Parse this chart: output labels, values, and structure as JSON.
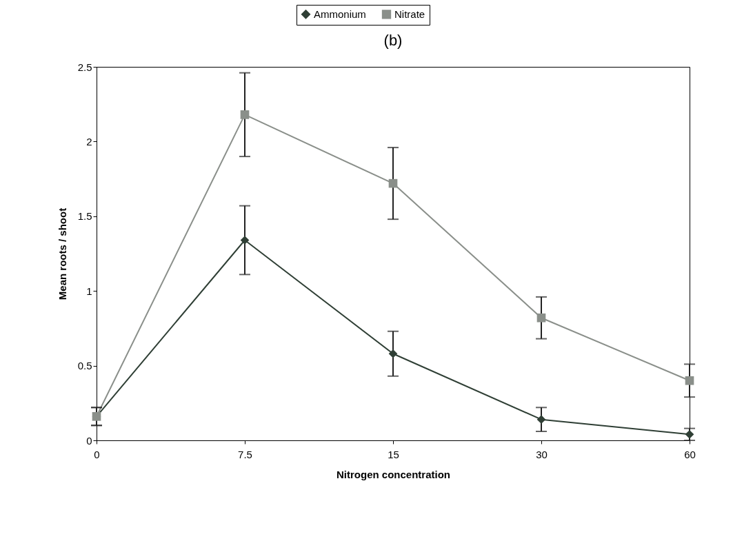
{
  "chart_data": {
    "type": "line",
    "title": "(b)",
    "xlabel": "Nitrogen concentration",
    "ylabel": "Mean roots / shoot",
    "categories": [
      "0",
      "7.5",
      "15",
      "30",
      "60"
    ],
    "series": [
      {
        "name": "Ammonium",
        "color": "#2f3f35",
        "marker": "diamond",
        "values": [
          0.16,
          1.34,
          0.58,
          0.14,
          0.04
        ],
        "errors": [
          0.06,
          0.23,
          0.15,
          0.08,
          0.04
        ]
      },
      {
        "name": "Nitrate",
        "color": "#8a8f8a",
        "marker": "square",
        "values": [
          0.16,
          2.18,
          1.72,
          0.82,
          0.4
        ],
        "errors": [
          0.06,
          0.28,
          0.24,
          0.14,
          0.11
        ]
      }
    ],
    "ylim": [
      0,
      2.5
    ],
    "yticks": [
      0,
      0.5,
      1,
      1.5,
      2,
      2.5
    ],
    "grid": false,
    "legend": "top"
  }
}
